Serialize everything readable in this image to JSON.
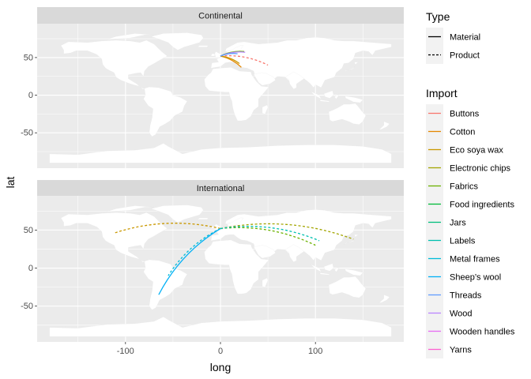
{
  "chart_data": {
    "type": "line",
    "xlabel": "long",
    "ylabel": "lat",
    "xlim": [
      -193,
      193
    ],
    "ylim": [
      -97,
      95
    ],
    "x_ticks": [
      -100,
      0,
      100
    ],
    "x_tick_labels": [
      "-100",
      "0",
      "100"
    ],
    "y_ticks": [
      -50,
      0,
      50
    ],
    "y_tick_labels": [
      "-50",
      "0",
      "50"
    ],
    "grid": true,
    "legend_position": "right",
    "panel_background": "#EBEBEB",
    "strip_background": "#D9D9D9",
    "land_color": "#FFFFFF",
    "facets": [
      {
        "title": "Continental",
        "series": [
          {
            "import": "Buttons",
            "type": "Product",
            "x": [
              0,
              50
            ],
            "y": [
              52,
              40
            ]
          },
          {
            "import": "Cotton",
            "type": "Material",
            "x": [
              0,
              22
            ],
            "y": [
              52,
              37
            ]
          },
          {
            "import": "Eco soya wax",
            "type": "Material",
            "x": [
              0,
              20
            ],
            "y": [
              52,
              42
            ]
          },
          {
            "import": "Fabrics",
            "type": "Material",
            "x": [
              0,
              25
            ],
            "y": [
              52,
              58
            ]
          },
          {
            "import": "Wood",
            "type": "Material",
            "x": [
              0,
              26
            ],
            "y": [
              52,
              57
            ]
          },
          {
            "import": "Threads",
            "type": "Material",
            "x": [
              0,
              18
            ],
            "y": [
              52,
              55
            ]
          }
        ]
      },
      {
        "title": "International",
        "series": [
          {
            "import": "Eco soya wax",
            "type": "Product",
            "x": [
              0,
              -112
            ],
            "y": [
              52,
              46
            ]
          },
          {
            "import": "Electronic chips",
            "type": "Product",
            "x": [
              0,
              140
            ],
            "y": [
              52,
              38
            ]
          },
          {
            "import": "Fabrics",
            "type": "Product",
            "x": [
              0,
              100
            ],
            "y": [
              52,
              30
            ]
          },
          {
            "import": "Labels",
            "type": "Product",
            "x": [
              0,
              104
            ],
            "y": [
              52,
              36
            ]
          },
          {
            "import": "Metal frames",
            "type": "Product",
            "x": [
              0,
              -55
            ],
            "y": [
              52,
              -10
            ]
          },
          {
            "import": "Sheep's wool",
            "type": "Material",
            "x": [
              0,
              -65
            ],
            "y": [
              52,
              -35
            ]
          }
        ]
      }
    ],
    "legend_type": {
      "title": "Type",
      "items": [
        {
          "label": "Material",
          "dash": "solid"
        },
        {
          "label": "Product",
          "dash": "dashed"
        }
      ]
    },
    "legend_import": {
      "title": "Import",
      "items": [
        {
          "label": "Buttons",
          "color": "#F8766D"
        },
        {
          "label": "Cotton",
          "color": "#E58700"
        },
        {
          "label": "Eco soya wax",
          "color": "#C99800"
        },
        {
          "label": "Electronic chips",
          "color": "#A3A500"
        },
        {
          "label": "Fabrics",
          "color": "#6BB100"
        },
        {
          "label": "Food ingredients",
          "color": "#00BA38"
        },
        {
          "label": "Jars",
          "color": "#00BF7D"
        },
        {
          "label": "Labels",
          "color": "#00C0AF"
        },
        {
          "label": "Metal frames",
          "color": "#00BCD8"
        },
        {
          "label": "Sheep’s wool",
          "color": "#00B0F6"
        },
        {
          "label": "Threads",
          "color": "#619CFF"
        },
        {
          "label": "Wood",
          "color": "#B983FF"
        },
        {
          "label": "Wooden handles",
          "color": "#E76BF3"
        },
        {
          "label": "Yarns",
          "color": "#FD61D1"
        }
      ]
    }
  }
}
